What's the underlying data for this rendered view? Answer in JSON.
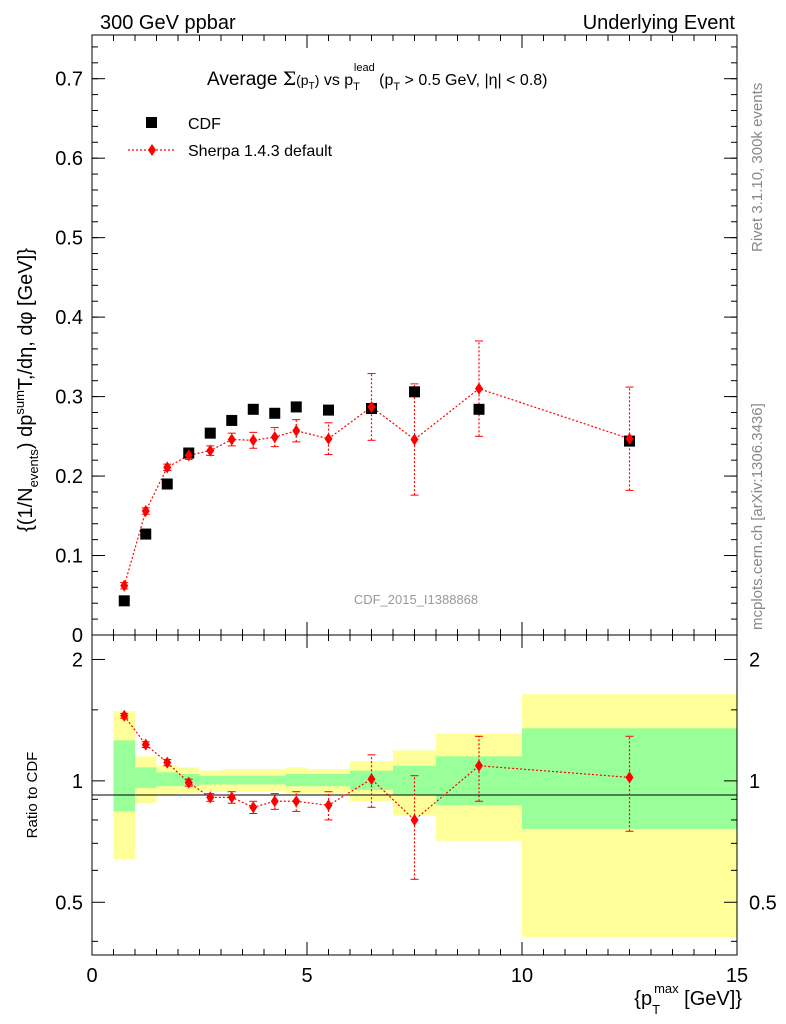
{
  "header": {
    "left": "300 GeV ppbar",
    "right": "Underlying Event"
  },
  "title": {
    "prefix": "Average ",
    "sigma": "Σ",
    "mid": " vs ",
    "tail": " (p",
    "range": " > 0.5 GeV, |η| < 0.8)"
  },
  "watermark": "CDF_2015_I1388868",
  "side_labels": {
    "rivet": "Rivet 3.1.10,  300k events",
    "mcplots": "mcplots.cern.ch [arXiv:1306.3436]"
  },
  "colors": {
    "data": "#000000",
    "mc": "#ff0000",
    "band_inner": "#99ff99",
    "band_outer": "#ffff99"
  },
  "chart_data": [
    {
      "type": "scatter",
      "panel": "main",
      "ylabel": "{(1/N_events) dp^sum T,/dη, dφ [GeV]}",
      "xlim": [
        0,
        15
      ],
      "ylim": [
        0,
        0.755
      ],
      "yticks": [
        0,
        0.1,
        0.2,
        0.3,
        0.4,
        0.5,
        0.6,
        0.7
      ],
      "ytick_labels": [
        "0",
        "0.1",
        "0.2",
        "0.3",
        "0.4",
        "0.5",
        "0.6",
        "0.7"
      ],
      "legend_position": "top-left",
      "series": [
        {
          "name": "CDF",
          "marker": "square",
          "x": [
            0.75,
            1.25,
            1.75,
            2.25,
            2.75,
            3.25,
            3.75,
            4.25,
            4.75,
            5.5,
            6.5,
            7.5,
            9.0,
            12.5
          ],
          "y": [
            0.043,
            0.127,
            0.19,
            0.229,
            0.254,
            0.27,
            0.284,
            0.279,
            0.287,
            0.283,
            0.285,
            0.306,
            0.284,
            0.244
          ]
        },
        {
          "name": "Sherpa 1.4.3 default",
          "marker": "diamond",
          "x": [
            0.75,
            1.25,
            1.75,
            2.25,
            2.75,
            3.25,
            3.75,
            4.25,
            4.75,
            5.5,
            6.5,
            7.5,
            9.0,
            12.5
          ],
          "y": [
            0.062,
            0.156,
            0.211,
            0.226,
            0.232,
            0.246,
            0.245,
            0.249,
            0.257,
            0.247,
            0.287,
            0.246,
            0.31,
            0.247
          ],
          "err": [
            0.004,
            0.004,
            0.004,
            0.005,
            0.006,
            0.008,
            0.01,
            0.012,
            0.014,
            0.02,
            0.042,
            0.07,
            0.06,
            0.065
          ]
        }
      ]
    },
    {
      "type": "scatter",
      "panel": "ratio",
      "ylabel": "Ratio to CDF",
      "xlabel": "{p_T^max [GeV]}",
      "xlim": [
        0,
        15
      ],
      "ylim": [
        0.37,
        2.3
      ],
      "log_y": true,
      "xticks": [
        0,
        5,
        10,
        15
      ],
      "xtick_labels": [
        "0",
        "5",
        "10",
        "15"
      ],
      "yticks": [
        0.5,
        1,
        2
      ],
      "ytick_labels": [
        "0.5",
        "1",
        "2"
      ],
      "reference": 1,
      "bands": [
        {
          "x0": 0.5,
          "x1": 1.0,
          "inner": [
            0.84,
            1.26
          ],
          "outer": [
            0.64,
            1.49
          ]
        },
        {
          "x0": 1.0,
          "x1": 1.5,
          "inner": [
            0.96,
            1.08
          ],
          "outer": [
            0.88,
            1.15
          ]
        },
        {
          "x0": 1.5,
          "x1": 2.0,
          "inner": [
            0.97,
            1.05
          ],
          "outer": [
            0.92,
            1.09
          ]
        },
        {
          "x0": 2.0,
          "x1": 2.5,
          "inner": [
            0.97,
            1.04
          ],
          "outer": [
            0.93,
            1.08
          ]
        },
        {
          "x0": 2.5,
          "x1": 3.0,
          "inner": [
            0.98,
            1.03
          ],
          "outer": [
            0.94,
            1.06
          ]
        },
        {
          "x0": 3.0,
          "x1": 3.5,
          "inner": [
            0.98,
            1.03
          ],
          "outer": [
            0.94,
            1.07
          ]
        },
        {
          "x0": 3.5,
          "x1": 4.0,
          "inner": [
            0.98,
            1.03
          ],
          "outer": [
            0.94,
            1.07
          ]
        },
        {
          "x0": 4.0,
          "x1": 4.5,
          "inner": [
            0.98,
            1.03
          ],
          "outer": [
            0.94,
            1.07
          ]
        },
        {
          "x0": 4.5,
          "x1": 5.0,
          "inner": [
            0.97,
            1.04
          ],
          "outer": [
            0.93,
            1.08
          ]
        },
        {
          "x0": 5.0,
          "x1": 6.0,
          "inner": [
            0.97,
            1.04
          ],
          "outer": [
            0.93,
            1.07
          ]
        },
        {
          "x0": 6.0,
          "x1": 7.0,
          "inner": [
            0.95,
            1.06
          ],
          "outer": [
            0.89,
            1.12
          ]
        },
        {
          "x0": 7.0,
          "x1": 8.0,
          "inner": [
            0.92,
            1.09
          ],
          "outer": [
            0.82,
            1.19
          ]
        },
        {
          "x0": 8.0,
          "x1": 10.0,
          "inner": [
            0.87,
            1.15
          ],
          "outer": [
            0.71,
            1.31
          ]
        },
        {
          "x0": 10.0,
          "x1": 15.0,
          "inner": [
            0.76,
            1.35
          ],
          "outer": [
            0.41,
            1.64
          ]
        }
      ],
      "series": [
        {
          "name": "Sherpa 1.4.3 default",
          "marker": "diamond",
          "x": [
            0.75,
            1.25,
            1.75,
            2.25,
            2.75,
            3.25,
            3.75,
            4.25,
            4.75,
            5.5,
            6.5,
            7.5,
            9.0,
            12.5
          ],
          "y": [
            1.45,
            1.23,
            1.11,
            0.99,
            0.91,
            0.91,
            0.86,
            0.89,
            0.89,
            0.87,
            1.01,
            0.8,
            1.09,
            1.02
          ],
          "err": [
            0.02,
            0.02,
            0.02,
            0.02,
            0.02,
            0.03,
            0.03,
            0.04,
            0.05,
            0.07,
            0.15,
            0.23,
            0.2,
            0.27
          ]
        }
      ]
    }
  ]
}
